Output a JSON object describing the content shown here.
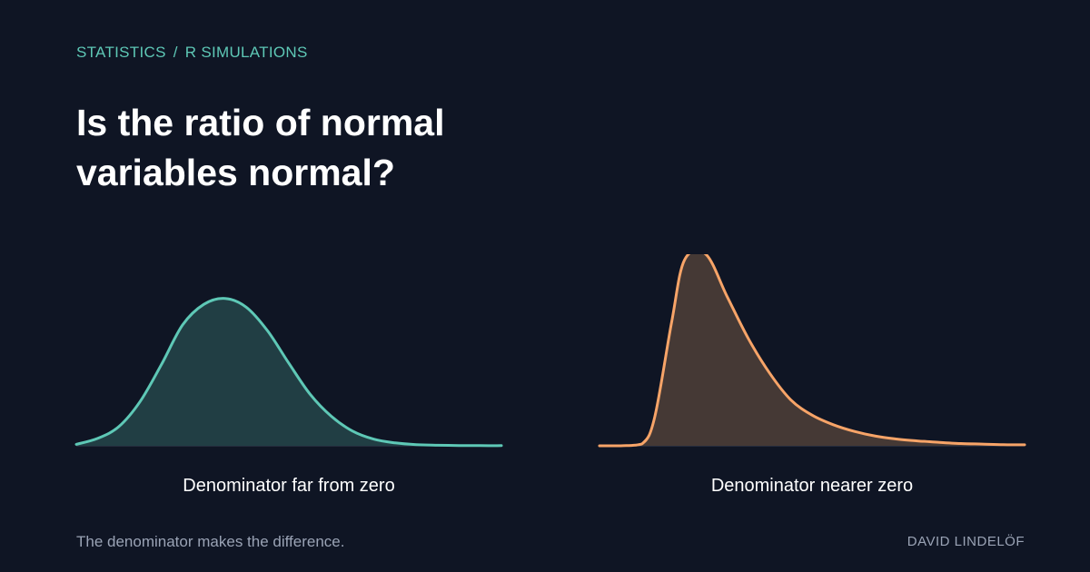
{
  "breadcrumb": {
    "section": "STATISTICS",
    "separator": "/",
    "topic": "R SIMULATIONS"
  },
  "title": "Is the ratio of normal variables normal?",
  "footer": {
    "note": "The denominator makes the difference.",
    "author": "DAVID LINDELÖF"
  },
  "chart_data": [
    {
      "type": "area",
      "title": "",
      "caption": "Denominator far from zero",
      "color": "#5ec8b6",
      "fill": "#213e44",
      "x": [
        0,
        0.05,
        0.1,
        0.15,
        0.2,
        0.25,
        0.3,
        0.35,
        0.4,
        0.45,
        0.5,
        0.55,
        0.6,
        0.65,
        0.7,
        0.75,
        0.8,
        0.85,
        0.9,
        0.95,
        1
      ],
      "y": [
        0.01,
        0.05,
        0.13,
        0.3,
        0.55,
        0.82,
        0.96,
        1.0,
        0.94,
        0.78,
        0.56,
        0.35,
        0.2,
        0.1,
        0.045,
        0.02,
        0.008,
        0.004,
        0.002,
        0.001,
        0.001
      ],
      "ylim": [
        0,
        1.3
      ]
    },
    {
      "type": "area",
      "title": "",
      "caption": "Denominator nearer zero",
      "color": "#f7a468",
      "fill": "#453935",
      "x": [
        0,
        0.05,
        0.1,
        0.13,
        0.17,
        0.2,
        0.25,
        0.3,
        0.35,
        0.4,
        0.45,
        0.5,
        0.55,
        0.6,
        0.65,
        0.7,
        0.75,
        0.8,
        0.85,
        0.9,
        0.95,
        1
      ],
      "y": [
        0,
        0,
        0.01,
        0.15,
        0.65,
        0.97,
        1.0,
        0.78,
        0.56,
        0.38,
        0.24,
        0.16,
        0.11,
        0.075,
        0.05,
        0.035,
        0.025,
        0.018,
        0.012,
        0.009,
        0.006,
        0.005
      ],
      "ylim": [
        0,
        1.0
      ]
    }
  ]
}
